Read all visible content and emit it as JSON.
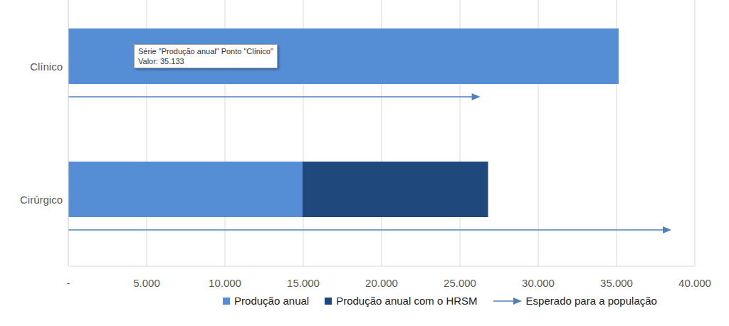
{
  "chart_data": {
    "type": "bar",
    "orientation": "horizontal",
    "stacked": true,
    "grid": true,
    "legend": "bottom",
    "categories": [
      "Clínico",
      "Cirúrgico"
    ],
    "series": [
      {
        "name": "Produção anual",
        "color": "#558ed5",
        "values": [
          35133,
          14950
        ]
      },
      {
        "name": "Produção anual com o HRSM",
        "color": "#1f497d",
        "values": [
          0,
          11850
        ]
      },
      {
        "name": "Esperado para a população",
        "color": "#4f81bd",
        "type": "arrow",
        "values": [
          26300,
          38500
        ]
      }
    ],
    "xlim": [
      0,
      40000
    ],
    "xticks": [
      {
        "value": 0,
        "label": "-"
      },
      {
        "value": 5000,
        "label": "5.000"
      },
      {
        "value": 10000,
        "label": "10.000"
      },
      {
        "value": 15000,
        "label": "15.000"
      },
      {
        "value": 20000,
        "label": "20.000"
      },
      {
        "value": 25000,
        "label": "25.000"
      },
      {
        "value": 30000,
        "label": "30.000"
      },
      {
        "value": 35000,
        "label": "35.000"
      },
      {
        "value": 40000,
        "label": "40.000"
      }
    ],
    "annotations": [
      "Série \"Produção anual\" Ponto \"Clínico\"",
      "Valor: 35.133"
    ]
  }
}
